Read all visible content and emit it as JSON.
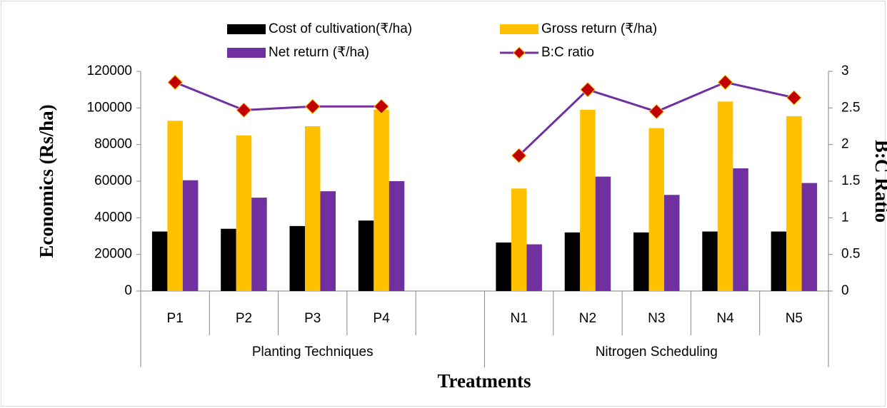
{
  "chart_data": {
    "type": "bar",
    "categories": [
      "P1",
      "P2",
      "P3",
      "P4",
      null,
      "N1",
      "N2",
      "N3",
      "N4",
      "N5"
    ],
    "groups": [
      {
        "label": "Planting Techniques",
        "span": 5
      },
      {
        "label": "Nitrogen Scheduling",
        "span": 5
      }
    ],
    "series": [
      {
        "name": "Cost of cultivation(₹/ha)",
        "color": "#000000",
        "values": [
          32500,
          34000,
          35500,
          38500,
          null,
          26500,
          32000,
          32000,
          32500,
          32500
        ]
      },
      {
        "name": "Gross return (₹/ha)",
        "color": "#ffc000",
        "values": [
          93000,
          85000,
          90000,
          99000,
          null,
          56000,
          99000,
          89000,
          103500,
          95500
        ]
      },
      {
        "name": "Net return (₹/ha)",
        "color": "#7030a0",
        "values": [
          60500,
          51000,
          54500,
          60000,
          null,
          25500,
          62500,
          52500,
          67000,
          59000
        ]
      },
      {
        "name": "B:C ratio",
        "color": "#7030a0",
        "marker_color": "#c00000",
        "type": "line",
        "axis": "y2",
        "values": [
          2.85,
          2.47,
          2.52,
          2.52,
          null,
          1.85,
          2.75,
          2.45,
          2.85,
          2.64
        ]
      }
    ],
    "ylabel": "Economics (Rs/ha)",
    "y2label": "B:C Ratio",
    "xlabel": "Treatments",
    "ylim": [
      0,
      120000
    ],
    "yticks": [
      0,
      20000,
      40000,
      60000,
      80000,
      100000,
      120000
    ],
    "y2lim": [
      0,
      3
    ],
    "y2ticks": [
      0,
      0.5,
      1,
      1.5,
      2,
      2.5,
      3
    ],
    "legend": "top",
    "grid": false
  }
}
